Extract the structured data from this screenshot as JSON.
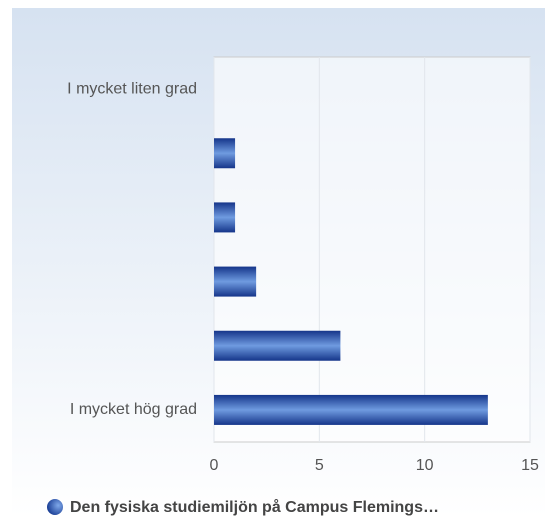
{
  "chart_data": {
    "type": "bar",
    "orientation": "horizontal",
    "categories": [
      "I mycket liten grad",
      null,
      null,
      null,
      null,
      "I mycket hög grad"
    ],
    "series": [
      {
        "name": "Den fysiska studiemiljön på Campus Flemings…",
        "color": "#1f4fa8",
        "values": [
          0,
          1,
          1,
          2,
          6,
          13
        ]
      }
    ],
    "xlim": [
      0,
      15
    ],
    "xticks": [
      0,
      5,
      10,
      15
    ],
    "grid": true
  }
}
